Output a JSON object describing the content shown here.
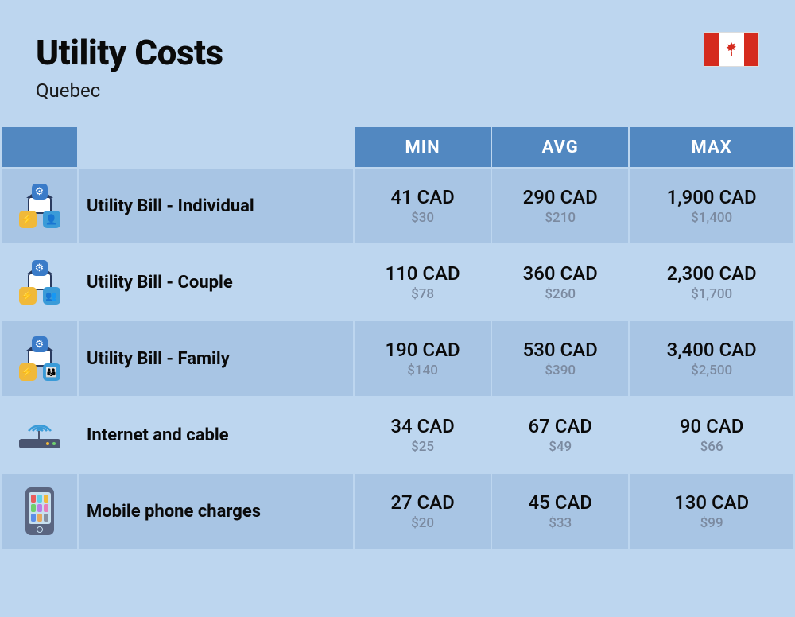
{
  "header": {
    "title": "Utility Costs",
    "subtitle": "Quebec"
  },
  "columns": {
    "min": "MIN",
    "avg": "AVG",
    "max": "MAX"
  },
  "rows": [
    {
      "icon": "utility",
      "persons": "👤",
      "label": "Utility Bill - Individual",
      "min_cad": "41 CAD",
      "min_usd": "$30",
      "avg_cad": "290 CAD",
      "avg_usd": "$210",
      "max_cad": "1,900 CAD",
      "max_usd": "$1,400"
    },
    {
      "icon": "utility",
      "persons": "👥",
      "label": "Utility Bill - Couple",
      "min_cad": "110 CAD",
      "min_usd": "$78",
      "avg_cad": "360 CAD",
      "avg_usd": "$260",
      "max_cad": "2,300 CAD",
      "max_usd": "$1,700"
    },
    {
      "icon": "utility",
      "persons": "👪",
      "label": "Utility Bill - Family",
      "min_cad": "190 CAD",
      "min_usd": "$140",
      "avg_cad": "530 CAD",
      "avg_usd": "$390",
      "max_cad": "3,400 CAD",
      "max_usd": "$2,500"
    },
    {
      "icon": "router",
      "label": "Internet and cable",
      "min_cad": "34 CAD",
      "min_usd": "$25",
      "avg_cad": "67 CAD",
      "avg_usd": "$49",
      "max_cad": "90 CAD",
      "max_usd": "$66"
    },
    {
      "icon": "phone",
      "label": "Mobile phone charges",
      "min_cad": "27 CAD",
      "min_usd": "$20",
      "avg_cad": "45 CAD",
      "avg_usd": "$33",
      "max_cad": "130 CAD",
      "max_usd": "$99"
    }
  ],
  "colors": {
    "page_bg": "#bdd6ef",
    "header_bg": "#5288c1",
    "row_odd": "#a8c5e4",
    "row_even": "#bdd6ef",
    "text_main": "#0a0a0a",
    "text_sub": "#7b8aa0",
    "flag_red": "#d52b1e"
  }
}
